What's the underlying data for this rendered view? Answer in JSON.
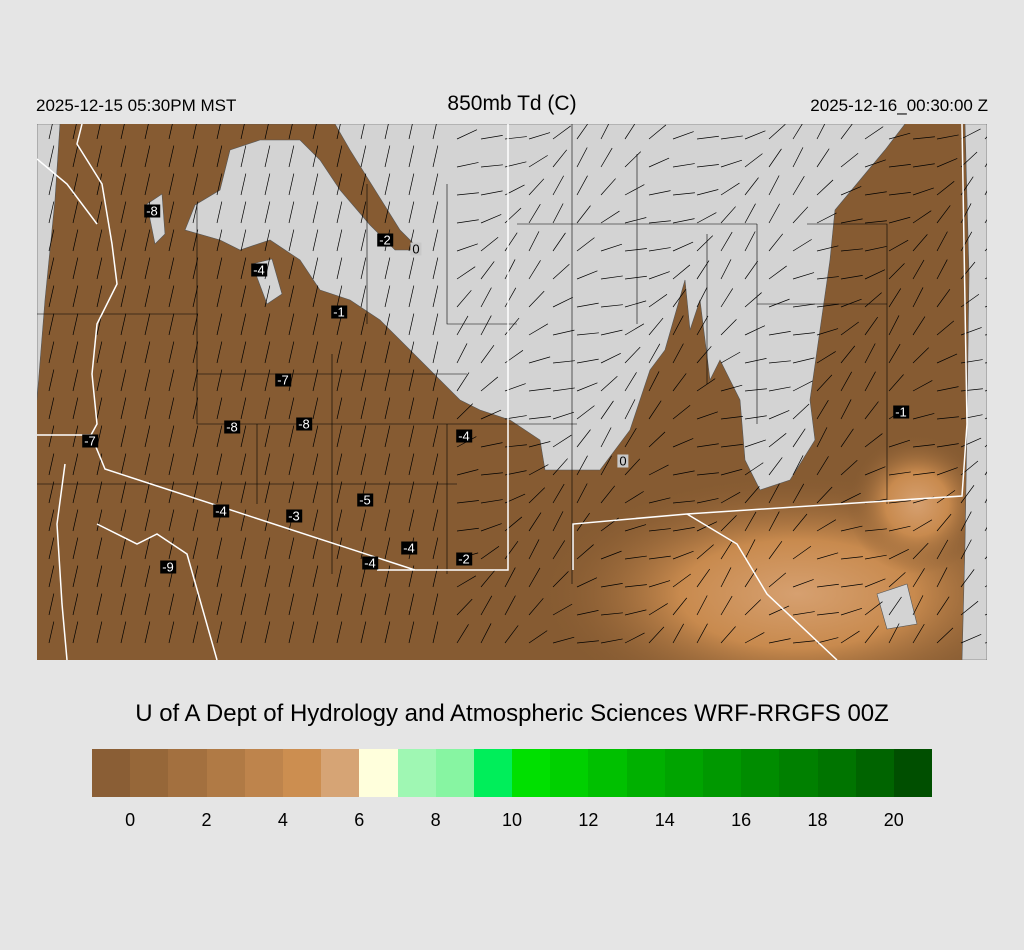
{
  "header": {
    "local_time": "2025-12-15 05:30PM MST",
    "title": "850mb Td (C)",
    "utc_time": "2025-12-16_00:30:00 Z"
  },
  "map": {
    "colors": {
      "background": "#d3d3d3",
      "base_fill": "#865b32",
      "warm_fill": "#cc8e50",
      "state_border": "#ffffff",
      "county_border": "#000000"
    },
    "station_values": [
      "-8",
      "-2",
      "0",
      "-4",
      "-1",
      "-7",
      "-8",
      "-8",
      "-7",
      "-4",
      "0",
      "-1",
      "-5",
      "-4",
      "-3",
      "-4",
      "-2",
      "-4",
      "-9"
    ]
  },
  "credit": "U of A Dept of Hydrology and Atmospheric Sciences WRF-RRGFS 00Z",
  "colorbar": {
    "colors": [
      "#8a5e35",
      "#966739",
      "#a3703f",
      "#b07a45",
      "#be844c",
      "#cc8e50",
      "#d6a475",
      "#ffffdc",
      "#9ff7b3",
      "#87f5a2",
      "#00ee5a",
      "#00e000",
      "#00d000",
      "#00c000",
      "#00b000",
      "#00a400",
      "#009800",
      "#008c00",
      "#008000",
      "#007400",
      "#006400",
      "#004f00"
    ],
    "ticks": [
      "0",
      "2",
      "4",
      "6",
      "8",
      "10",
      "12",
      "14",
      "16",
      "18",
      "20"
    ]
  }
}
